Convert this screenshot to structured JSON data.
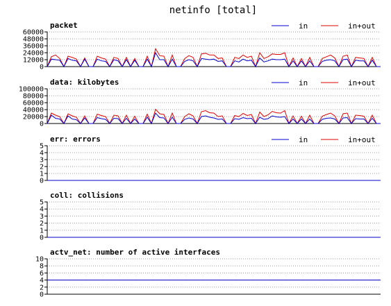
{
  "title": "netinfo [total]",
  "colors": {
    "in": "#0000cc",
    "inout": "#dd0000",
    "axis": "#000000",
    "grid": "#9a9a9a"
  },
  "chart_data": [
    {
      "type": "line",
      "title": "packet",
      "yticks": [
        0,
        12000,
        24000,
        36000,
        48000,
        60000
      ],
      "ylim": [
        0,
        60000
      ],
      "grid": true,
      "legend_position": "top-right",
      "series": [
        {
          "name": "in",
          "color": "#0000cc",
          "values": [
            0,
            13000,
            12000,
            11000,
            0,
            14000,
            11000,
            10000,
            0,
            13000,
            0,
            0,
            13000,
            10000,
            9000,
            0,
            12000,
            10000,
            0,
            12000,
            0,
            11000,
            0,
            0,
            13000,
            0,
            24000,
            12000,
            12000,
            0,
            13000,
            0,
            0,
            9000,
            12000,
            10000,
            0,
            14000,
            13000,
            12000,
            13000,
            9000,
            10000,
            0,
            0,
            10000,
            8000,
            13000,
            10000,
            11000,
            0,
            15000,
            8000,
            10000,
            13000,
            12000,
            12000,
            13000,
            0,
            10000,
            0,
            10000,
            0,
            10000,
            0,
            0,
            9000,
            11000,
            12000,
            10000,
            0,
            12000,
            13000,
            0,
            11000,
            10000,
            10000,
            0,
            11000,
            0,
            0
          ]
        },
        {
          "name": "in+out",
          "color": "#dd0000",
          "values": [
            0,
            17000,
            20000,
            14000,
            0,
            18000,
            16000,
            13000,
            0,
            15000,
            0,
            0,
            18000,
            15000,
            13000,
            0,
            16000,
            14000,
            0,
            16000,
            0,
            14000,
            0,
            0,
            18000,
            0,
            31000,
            19000,
            18000,
            0,
            20000,
            0,
            0,
            14000,
            19000,
            16000,
            0,
            22000,
            23000,
            20000,
            20000,
            14000,
            15000,
            0,
            0,
            16000,
            14000,
            20000,
            16000,
            18000,
            0,
            24000,
            14000,
            17000,
            22000,
            21000,
            21000,
            24000,
            0,
            15000,
            0,
            14000,
            0,
            16000,
            0,
            0,
            14000,
            17000,
            20000,
            15000,
            0,
            18000,
            20000,
            0,
            16000,
            15000,
            14000,
            0,
            16000,
            0,
            0
          ]
        }
      ]
    },
    {
      "type": "line",
      "title": "data: kilobytes",
      "yticks": [
        0,
        20000,
        40000,
        60000,
        80000,
        100000
      ],
      "ylim": [
        0,
        100000
      ],
      "grid": true,
      "legend_position": "top-right",
      "series": [
        {
          "name": "in",
          "color": "#0000cc",
          "values": [
            0,
            24000,
            15000,
            13000,
            0,
            22000,
            13000,
            11000,
            0,
            16000,
            0,
            0,
            17000,
            14000,
            12000,
            0,
            15000,
            14000,
            0,
            15000,
            0,
            13000,
            0,
            0,
            18000,
            0,
            30000,
            17000,
            16000,
            0,
            18000,
            0,
            0,
            12000,
            16000,
            13000,
            0,
            20000,
            22000,
            18000,
            16000,
            12000,
            13000,
            0,
            0,
            14000,
            12000,
            17000,
            14000,
            15000,
            0,
            18000,
            12000,
            14000,
            22000,
            19000,
            18000,
            20000,
            0,
            13000,
            0,
            13000,
            0,
            13000,
            0,
            0,
            12000,
            15000,
            16000,
            13000,
            0,
            16000,
            17000,
            0,
            14000,
            13000,
            13000,
            0,
            15000,
            0,
            0
          ]
        },
        {
          "name": "in+out",
          "color": "#dd0000",
          "values": [
            0,
            30000,
            24000,
            20000,
            0,
            28000,
            22000,
            18000,
            0,
            22000,
            0,
            0,
            27000,
            23000,
            20000,
            0,
            24000,
            22000,
            0,
            24000,
            0,
            21000,
            0,
            0,
            27000,
            0,
            41000,
            28000,
            26000,
            0,
            30000,
            0,
            0,
            20000,
            28000,
            22000,
            0,
            34000,
            37000,
            31000,
            30000,
            20000,
            22000,
            0,
            0,
            23000,
            20000,
            29000,
            23000,
            26000,
            0,
            33000,
            20000,
            25000,
            35000,
            31000,
            30000,
            37000,
            0,
            22000,
            0,
            21000,
            0,
            24000,
            0,
            0,
            21000,
            26000,
            30000,
            22000,
            0,
            28000,
            30000,
            0,
            24000,
            23000,
            21000,
            0,
            24000,
            0,
            0
          ]
        }
      ]
    },
    {
      "type": "line",
      "title": "err: errors",
      "yticks": [
        0,
        1,
        2,
        3,
        4,
        5
      ],
      "ylim": [
        0,
        5
      ],
      "grid": true,
      "legend_position": "top-right",
      "series": [
        {
          "name": "in",
          "color": "#0000cc",
          "values": [
            0,
            0
          ]
        },
        {
          "name": "in+out",
          "color": "#dd0000",
          "values": [
            0,
            0
          ]
        }
      ]
    },
    {
      "type": "line",
      "title": "coll: collisions",
      "yticks": [
        0,
        1,
        2,
        3,
        4,
        5
      ],
      "ylim": [
        0,
        5
      ],
      "grid": true,
      "series": [
        {
          "color": "#0000cc",
          "values": [
            0,
            0
          ]
        }
      ]
    },
    {
      "type": "line",
      "title": "actv_net: number of active interfaces",
      "yticks": [
        0,
        2,
        4,
        6,
        8,
        10
      ],
      "ylim": [
        0,
        10
      ],
      "grid": true,
      "series": [
        {
          "color": "#0000cc",
          "values": [
            4,
            4
          ]
        }
      ]
    }
  ]
}
